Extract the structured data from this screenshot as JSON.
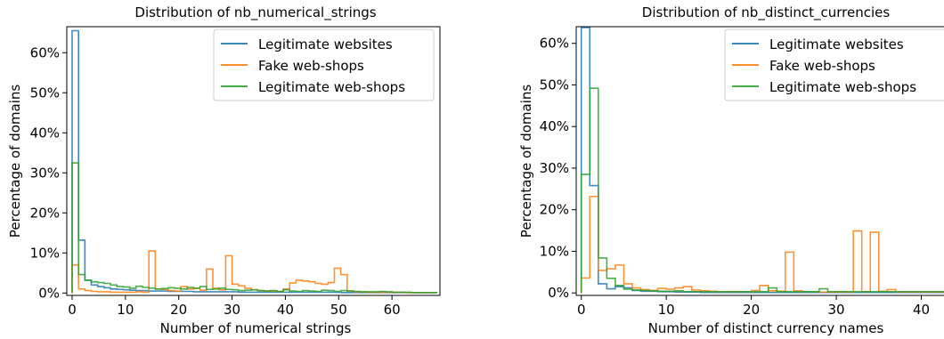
{
  "chart_data": [
    {
      "type": "step",
      "title": "Distribution of nb_numerical_strings",
      "xlabel": "Number of numerical strings",
      "ylabel": "Percentage of domains",
      "xlim": [
        -1,
        69
      ],
      "ylim": [
        -0.6,
        66.5
      ],
      "xticks": [
        0,
        10,
        20,
        30,
        40,
        50,
        60
      ],
      "yticks": [
        0,
        10,
        20,
        30,
        40,
        50,
        60
      ],
      "ytick_suffix": "%",
      "legend": "top-right",
      "bin_edges_start": 0,
      "bin_width": 1.2,
      "series": [
        {
          "name": "Legitimate websites",
          "color": "#1f77b4",
          "values": [
            65.5,
            13.2,
            3.2,
            2.0,
            1.6,
            1.3,
            1.0,
            0.9,
            0.8,
            0.7,
            0.6,
            0.6,
            0.5,
            0.5,
            0.5,
            0.4,
            0.4,
            0.4,
            0.4,
            0.3,
            0.3,
            0.3,
            0.3,
            0.3,
            0.3,
            0.3,
            0.2,
            0.2,
            0.2,
            0.2,
            0.2,
            0.2,
            0.2,
            0.2,
            0.2,
            0.2,
            0.2,
            0.2,
            0.2,
            0.2,
            0.2,
            0.2,
            0.1,
            0.1,
            0.1,
            0.1,
            0.1,
            0.1,
            0.1,
            0.1,
            0.1,
            0.1,
            0.1,
            0.1,
            0.1,
            0.1,
            0.1
          ]
        },
        {
          "name": "Fake web-shops",
          "color": "#ff7f0e",
          "values": [
            7.0,
            1.0,
            0.6,
            0.4,
            0.3,
            0.3,
            0.2,
            0.2,
            0.2,
            0.2,
            0.3,
            0.2,
            10.5,
            1.0,
            0.9,
            0.6,
            0.5,
            1.6,
            1.0,
            1.2,
            0.7,
            6.0,
            1.2,
            0.8,
            9.3,
            2.2,
            1.8,
            1.2,
            0.8,
            0.6,
            0.5,
            0.5,
            0.4,
            1.0,
            2.5,
            3.2,
            3.0,
            2.8,
            2.4,
            2.2,
            2.6,
            6.2,
            4.6,
            0.5,
            0.3,
            0.3,
            0.2,
            0.2,
            0.2,
            0.2,
            0.2,
            0.2,
            0.1,
            0.1,
            0.1,
            0.1,
            0.1
          ]
        },
        {
          "name": "Legitimate web-shops",
          "color": "#2ca02c",
          "values": [
            32.5,
            4.6,
            3.2,
            2.8,
            2.6,
            2.4,
            2.0,
            1.6,
            1.5,
            1.2,
            1.7,
            1.4,
            1.2,
            1.0,
            1.1,
            1.3,
            1.2,
            1.0,
            1.4,
            1.2,
            1.6,
            0.9,
            1.0,
            1.2,
            0.9,
            0.8,
            0.6,
            0.7,
            0.8,
            0.6,
            0.5,
            0.6,
            0.4,
            0.8,
            0.5,
            0.4,
            0.6,
            0.5,
            0.4,
            0.7,
            0.6,
            0.4,
            0.6,
            0.5,
            0.4,
            0.3,
            0.3,
            0.3,
            0.4,
            0.3,
            0.2,
            0.2,
            0.2,
            0.1,
            0.1,
            0.1,
            0.1
          ]
        }
      ]
    },
    {
      "type": "step",
      "title": "Distribution of nb_distinct_currencies",
      "xlabel": "Number of distinct currency names",
      "ylabel": "Percentage of domains",
      "xlim": [
        -0.6,
        45.5
      ],
      "ylim": [
        -0.6,
        64
      ],
      "xticks": [
        0,
        10,
        20,
        30,
        40
      ],
      "yticks": [
        0,
        10,
        20,
        30,
        40,
        50,
        60
      ],
      "ytick_suffix": "%",
      "legend": "top-right",
      "bin_edges_start": 0,
      "bin_width": 1.0,
      "series": [
        {
          "name": "Legitimate websites",
          "color": "#1f77b4",
          "values": [
            63.8,
            25.8,
            2.2,
            1.0,
            1.5,
            1.2,
            0.6,
            0.4,
            0.4,
            0.3,
            0.3,
            0.2,
            0.2,
            0.2,
            0.1,
            0.1,
            0.1,
            0.1,
            0.1,
            0.1,
            0.1,
            0.1,
            0.1,
            0.1,
            0.1,
            0.1,
            0.1,
            0.1,
            0.1,
            0.1,
            0.1,
            0.1,
            0.1,
            0.1,
            0.1,
            0.1,
            0.1,
            0.1,
            0.1,
            0.1,
            0.1,
            0.1,
            0.1,
            0.1,
            0.1
          ]
        },
        {
          "name": "Fake web-shops",
          "color": "#ff7f0e",
          "values": [
            3.6,
            23.2,
            5.4,
            5.8,
            6.7,
            2.2,
            1.2,
            0.8,
            0.6,
            1.1,
            0.9,
            1.2,
            1.5,
            0.7,
            0.5,
            0.4,
            0.3,
            0.3,
            0.3,
            0.3,
            0.6,
            1.8,
            0.5,
            0.4,
            9.8,
            0.5,
            0.3,
            0.3,
            0.2,
            0.2,
            0.2,
            0.2,
            14.9,
            0.3,
            14.6,
            0.4,
            0.8,
            0.2,
            0.2,
            0.2,
            0.2,
            0.2,
            0.2,
            0.2,
            0.2
          ]
        },
        {
          "name": "Legitimate web-shops",
          "color": "#2ca02c",
          "values": [
            28.5,
            49.2,
            8.4,
            3.5,
            1.8,
            0.9,
            0.7,
            0.6,
            0.5,
            0.4,
            0.4,
            0.5,
            0.3,
            0.3,
            0.3,
            0.3,
            0.3,
            0.3,
            0.3,
            0.3,
            0.3,
            0.3,
            1.2,
            0.3,
            0.3,
            0.3,
            0.3,
            0.3,
            1.0,
            0.3,
            0.3,
            0.3,
            0.3,
            0.3,
            0.3,
            0.3,
            0.3,
            0.3,
            0.3,
            0.3,
            0.3,
            0.3,
            0.3,
            0.3,
            0.3
          ]
        }
      ]
    }
  ]
}
